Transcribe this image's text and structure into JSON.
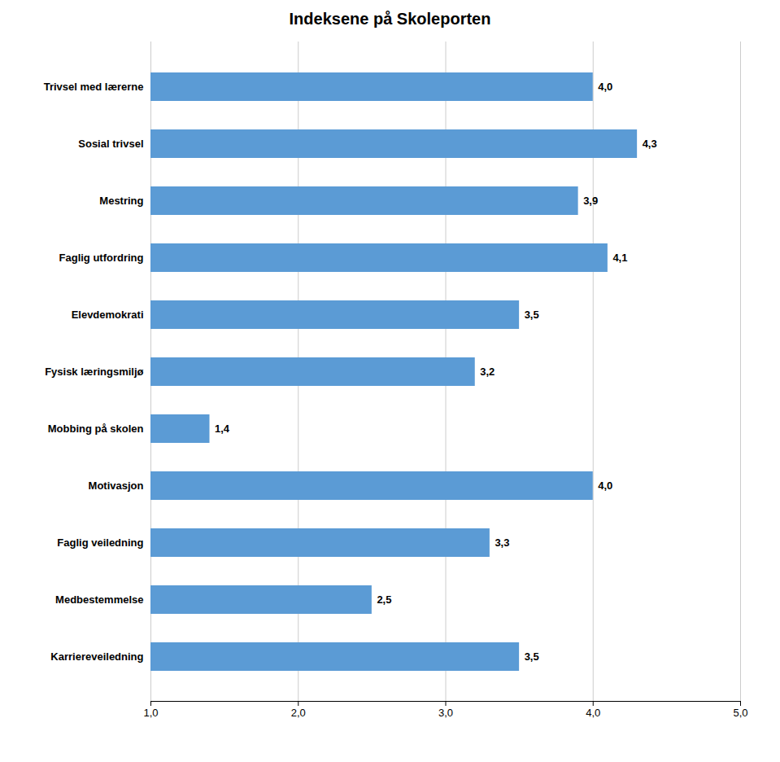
{
  "chart_data": {
    "type": "bar",
    "orientation": "horizontal",
    "title": "Indeksene på Skoleporten",
    "categories": [
      "Karriereveiledning",
      "Medbestemmelse",
      "Faglig veiledning",
      "Motivasjon",
      "Mobbing på skolen",
      "Fysisk læringsmiljø",
      "Elevdemokrati",
      "Faglig utfordring",
      "Mestring",
      "Sosial trivsel",
      "Trivsel med lærerne"
    ],
    "values": [
      3.5,
      2.5,
      3.3,
      4.0,
      1.4,
      3.2,
      3.5,
      4.1,
      3.9,
      4.3,
      4.0
    ],
    "value_labels": [
      "3,5",
      "2,5",
      "3,3",
      "4,0",
      "1,4",
      "3,2",
      "3,5",
      "4,1",
      "3,9",
      "4,3",
      "4,0"
    ],
    "data_labels": true,
    "color": "#5B9BD5",
    "xlim": [
      1.0,
      5.0
    ],
    "xticks": [
      {
        "value": 1.0,
        "label": "1,0"
      },
      {
        "value": 2.0,
        "label": "2,0"
      },
      {
        "value": 3.0,
        "label": "3,0"
      },
      {
        "value": 4.0,
        "label": "4,0"
      },
      {
        "value": 5.0,
        "label": "5,0"
      }
    ],
    "grid": true
  }
}
